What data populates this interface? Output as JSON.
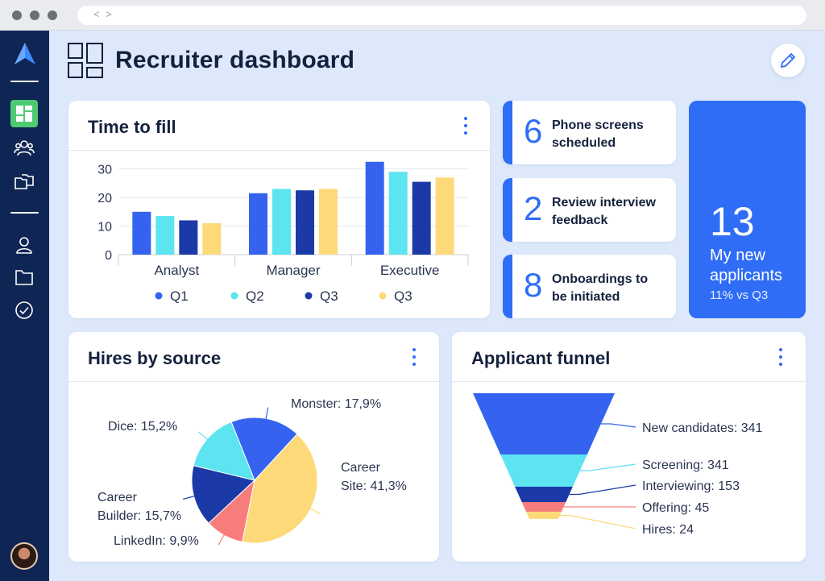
{
  "browser": {
    "nav_arrows": "< >"
  },
  "sidebar": {
    "items": [
      {
        "name": "dashboard",
        "icon": "dashboard-icon",
        "active": true
      },
      {
        "name": "candidates",
        "icon": "people-icon",
        "active": false
      },
      {
        "name": "jobs",
        "icon": "folders-icon",
        "active": false
      },
      {
        "name": "profile",
        "icon": "user-icon",
        "active": false
      },
      {
        "name": "files",
        "icon": "folder-icon",
        "active": false
      },
      {
        "name": "tasks",
        "icon": "check-circle-icon",
        "active": false
      }
    ]
  },
  "header": {
    "title": "Recruiter dashboard"
  },
  "time_to_fill": {
    "title": "Time to fill"
  },
  "stats": [
    {
      "value": "6",
      "label_line1": "Phone screens",
      "label_line2": "scheduled"
    },
    {
      "value": "2",
      "label_line1": "Review interview",
      "label_line2": "feedback"
    },
    {
      "value": "8",
      "label_line1": "Onboardings to",
      "label_line2": "be initiated"
    }
  ],
  "applicants": {
    "value": "13",
    "label_line1": "My new",
    "label_line2": "applicants",
    "sub": "11% vs Q3"
  },
  "hires_by_source": {
    "title": "Hires by source"
  },
  "applicant_funnel": {
    "title": "Applicant funnel"
  },
  "colors": {
    "q1": "#3563f0",
    "q2": "#5ce4f0",
    "q3_dark": "#1b3aa8",
    "q3_light": "#fdd97a",
    "accent": "#2f6df6",
    "sidebar": "#0f2554",
    "coral": "#f77d7d"
  },
  "chart_data": [
    {
      "type": "bar",
      "title": "Time to fill",
      "categories": [
        "Analyst",
        "Manager",
        "Executive"
      ],
      "series": [
        {
          "name": "Q1",
          "color": "#3563f0",
          "values": [
            15,
            21.5,
            32.5
          ]
        },
        {
          "name": "Q2",
          "color": "#5ce4f0",
          "values": [
            13.5,
            23,
            29
          ]
        },
        {
          "name": "Q3",
          "color": "#1b3aa8",
          "values": [
            12,
            22.5,
            25.5
          ]
        },
        {
          "name": "Q3",
          "color": "#fdd97a",
          "values": [
            11,
            23,
            27
          ]
        }
      ],
      "yticks": [
        "0",
        "10",
        "20",
        "30"
      ],
      "ylim": [
        0,
        33
      ],
      "legend": "bottom",
      "grid": true
    },
    {
      "type": "pie",
      "title": "Hires by source",
      "slices": [
        {
          "label": "Monster: 17,9%",
          "value": 17.9,
          "color": "#3563f0"
        },
        {
          "label_line1": "Career",
          "label_line2": "Site: 41,3%",
          "value": 41.3,
          "color": "#fdd97a"
        },
        {
          "label": "LinkedIn: 9,9%",
          "value": 9.9,
          "color": "#f77d7d"
        },
        {
          "label_line1": "Career",
          "label_line2": "Builder: 15,7%",
          "value": 15.7,
          "color": "#1b3aa8"
        },
        {
          "label": "Dice: 15,2%",
          "value": 15.2,
          "color": "#5ce4f0"
        }
      ]
    },
    {
      "type": "funnel",
      "title": "Applicant funnel",
      "stages": [
        {
          "label": "New candidates: 341",
          "value": 341,
          "color": "#3563f0"
        },
        {
          "label": "Screening: 341",
          "value": 341,
          "color": "#5ce4f0"
        },
        {
          "label": "Interviewing: 153",
          "value": 153,
          "color": "#1b3aa8"
        },
        {
          "label": "Offering: 45",
          "value": 45,
          "color": "#f77d7d"
        },
        {
          "label": "Hires: 24",
          "value": 24,
          "color": "#fdd97a"
        }
      ]
    }
  ]
}
